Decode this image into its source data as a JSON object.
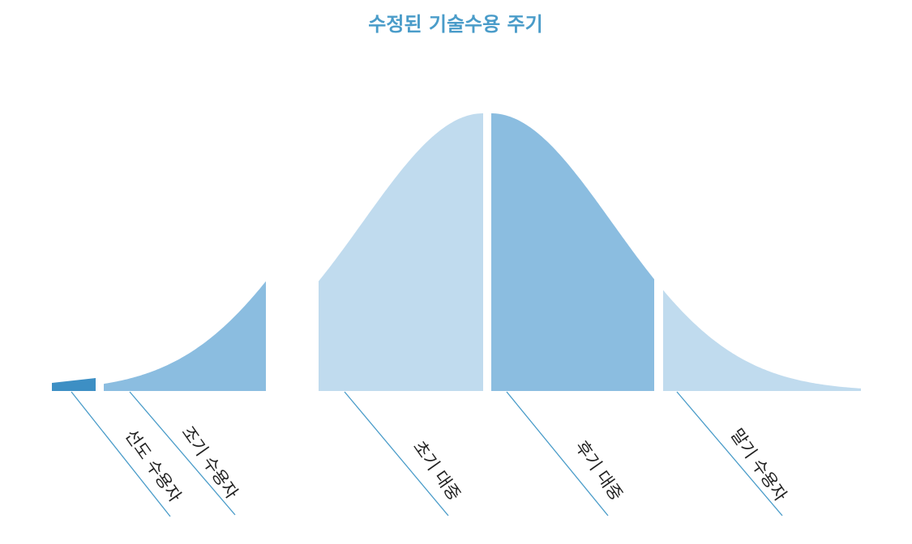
{
  "title": "수정된 기술수용 주기",
  "segments": [
    {
      "label": "선도 수용자"
    },
    {
      "label": "조기 수용자"
    },
    {
      "label": "초기 대중"
    },
    {
      "label": "후기 대중"
    },
    {
      "label": "말기 수용자"
    }
  ]
}
